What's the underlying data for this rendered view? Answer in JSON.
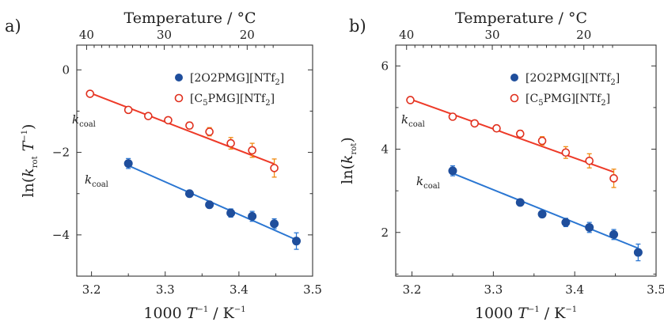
{
  "chart_data": [
    {
      "panel_label": "a)",
      "type": "scatter",
      "xlabel": "1000 T⁻¹ / K⁻¹",
      "ylabel": "ln(k_rot T⁻¹)",
      "top_xlabel": "Temperature / °C",
      "xlim": [
        3.18,
        3.5
      ],
      "ylim": [
        -5.0,
        0.6
      ],
      "xticks": [
        3.2,
        3.3,
        3.4,
        3.5
      ],
      "yticks": [
        -4,
        -2,
        0
      ],
      "top_ticks": [
        40,
        30,
        20
      ],
      "legend_position": "top-right",
      "series": [
        {
          "name": "[2O2PMG][NTf2]",
          "legend_text": "[2O2PMG][NTf",
          "legend_sub": "2",
          "legend_tail": "]",
          "marker": "filled-circle",
          "color": "#1f4e9c",
          "fit_color": "#2a76d2",
          "x": [
            3.25,
            3.333,
            3.36,
            3.389,
            3.418,
            3.448,
            3.478
          ],
          "y": [
            -2.27,
            -3.0,
            -3.27,
            -3.47,
            -3.55,
            -3.73,
            -4.15
          ],
          "yerr": [
            0.12,
            0.08,
            0.08,
            0.1,
            0.12,
            0.12,
            0.2
          ],
          "fit": {
            "x": [
              3.25,
              3.478
            ],
            "y": [
              -2.32,
              -4.12
            ]
          },
          "annotation": {
            "text": "k",
            "sub": "coal"
          }
        },
        {
          "name": "[C5PMG][NTf2]",
          "legend_text": "[C",
          "legend_sub_mid": "5",
          "legend_text_mid": "PMG][NTf",
          "legend_sub": "2",
          "legend_tail": "]",
          "marker": "open-circle",
          "color": "#e0301e",
          "fit_color": "#ee3a28",
          "errcolor": "#f08a10",
          "x": [
            3.198,
            3.25,
            3.277,
            3.304,
            3.333,
            3.36,
            3.389,
            3.418,
            3.448
          ],
          "y": [
            -0.58,
            -0.97,
            -1.12,
            -1.22,
            -1.35,
            -1.5,
            -1.78,
            -1.95,
            -2.38
          ],
          "yerr": [
            0.06,
            0.07,
            0.07,
            0.07,
            0.08,
            0.1,
            0.14,
            0.17,
            0.22
          ],
          "fit": {
            "x": [
              3.198,
              3.448
            ],
            "y": [
              -0.56,
              -2.28
            ]
          },
          "annotation": {
            "text": "k",
            "sub": "coal"
          }
        }
      ]
    },
    {
      "panel_label": "b)",
      "type": "scatter",
      "xlabel": "1000 T⁻¹ / K⁻¹",
      "ylabel": "ln(k_rot)",
      "top_xlabel": "Temperature / °C",
      "xlim": [
        3.18,
        3.5
      ],
      "ylim": [
        0.95,
        6.5
      ],
      "xticks": [
        3.2,
        3.3,
        3.4,
        3.5
      ],
      "yticks": [
        2,
        4,
        6
      ],
      "top_ticks": [
        40,
        30,
        20
      ],
      "legend_position": "top-right",
      "series": [
        {
          "name": "[2O2PMG][NTf2]",
          "legend_text": "[2O2PMG][NTf",
          "legend_sub": "2",
          "legend_tail": "]",
          "marker": "filled-circle",
          "color": "#1f4e9c",
          "fit_color": "#2a76d2",
          "x": [
            3.25,
            3.333,
            3.36,
            3.389,
            3.418,
            3.448,
            3.478
          ],
          "y": [
            3.48,
            2.72,
            2.44,
            2.24,
            2.12,
            1.95,
            1.52
          ],
          "yerr": [
            0.12,
            0.06,
            0.08,
            0.1,
            0.12,
            0.12,
            0.2
          ],
          "fit": {
            "x": [
              3.25,
              3.478
            ],
            "y": [
              3.42,
              1.62
            ]
          },
          "annotation": {
            "text": "k",
            "sub": "coal"
          }
        },
        {
          "name": "[C5PMG][NTf2]",
          "legend_text": "[C",
          "legend_sub_mid": "5",
          "legend_text_mid": "PMG][NTf",
          "legend_sub": "2",
          "legend_tail": "]",
          "marker": "open-circle",
          "color": "#e0301e",
          "fit_color": "#ee3a28",
          "errcolor": "#f08a10",
          "x": [
            3.198,
            3.25,
            3.277,
            3.304,
            3.333,
            3.36,
            3.389,
            3.418,
            3.448
          ],
          "y": [
            5.18,
            4.78,
            4.62,
            4.5,
            4.37,
            4.2,
            3.92,
            3.72,
            3.3
          ],
          "yerr": [
            0.06,
            0.07,
            0.06,
            0.06,
            0.08,
            0.1,
            0.14,
            0.17,
            0.22
          ],
          "fit": {
            "x": [
              3.198,
              3.448
            ],
            "y": [
              5.2,
              3.45
            ]
          },
          "annotation": {
            "text": "k",
            "sub": "coal"
          }
        }
      ]
    }
  ]
}
